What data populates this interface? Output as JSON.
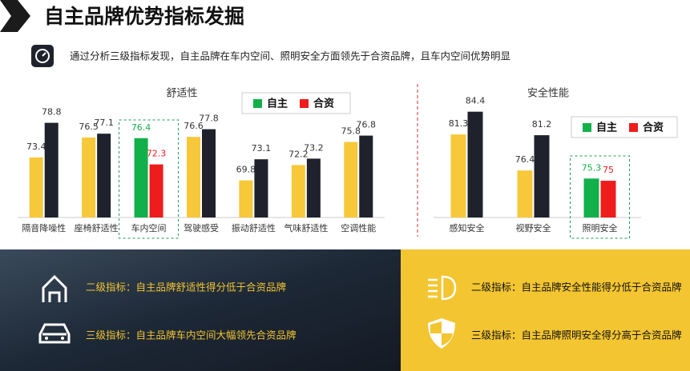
{
  "header": {
    "title": "自主品牌优势指标发掘",
    "subtitle": "通过分析三级指标发现，自主品牌在车内空间、照明安全方面领先于合资品牌，且车内空间优势明显"
  },
  "chart_data": [
    {
      "type": "bar",
      "title": "舒适性",
      "categories": [
        "隔音降噪性",
        "座椅舒适性",
        "车内空间",
        "驾驶感受",
        "振动舒适性",
        "气味舒适性",
        "空调性能"
      ],
      "series": [
        {
          "name": "自主",
          "color": "#f6c83a",
          "highlight_color": "#12b04a",
          "values": [
            73.4,
            76.5,
            76.4,
            76.6,
            69.8,
            72.2,
            75.8
          ]
        },
        {
          "name": "合资",
          "color": "#1f222c",
          "highlight_color": "#ee1c1c",
          "values": [
            78.8,
            77.1,
            72.3,
            77.8,
            73.1,
            73.2,
            76.8
          ]
        }
      ],
      "highlight_index": 2,
      "ylim": [
        64,
        82
      ]
    },
    {
      "type": "bar",
      "title": "安全性能",
      "categories": [
        "感知安全",
        "视野安全",
        "照明安全"
      ],
      "series": [
        {
          "name": "自主",
          "color": "#f6c83a",
          "highlight_color": "#12b04a",
          "values": [
            81.3,
            76.4,
            75.3
          ]
        },
        {
          "name": "合资",
          "color": "#1f222c",
          "highlight_color": "#ee1c1c",
          "values": [
            84.4,
            81.2,
            75
          ]
        }
      ],
      "highlight_index": 2,
      "ylim": [
        70,
        86
      ]
    }
  ],
  "findings": {
    "left": [
      "二级指标：自主品牌舒适性得分低于合资品牌",
      "三级指标：自主品牌车内空间大幅领先合资品牌"
    ],
    "right": [
      "二级指标：自主品牌安全性能得分低于合资品牌",
      "三级指标：自主品牌照明安全得分高于合资品牌"
    ]
  }
}
